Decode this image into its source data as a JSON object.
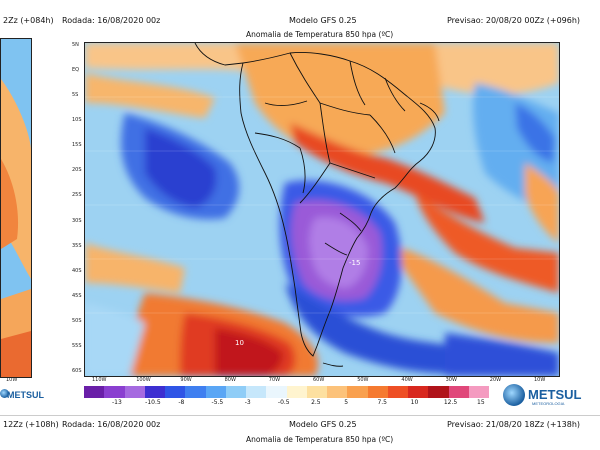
{
  "header": {
    "left_panel_time": "2Zz (+084h)",
    "rodada": "Rodada: 16/08/2020 00z",
    "modelo": "Modelo GFS 0.25",
    "previsao": "Previsao: 20/08/20 00Zz (+096h)",
    "title": "Anomalia de Temperatura 850 hpa (ºC)"
  },
  "map": {
    "lat_labels": [
      "5N",
      "EQ",
      "5S",
      "10S",
      "15S",
      "20S",
      "25S",
      "30S",
      "35S",
      "40S",
      "45S",
      "50S",
      "55S",
      "60S"
    ],
    "lon_labels": [
      "110W",
      "100W",
      "90W",
      "80W",
      "70W",
      "60W",
      "50W",
      "40W",
      "30W",
      "20W",
      "10W"
    ],
    "left_panel_lon_label": "10W",
    "anomaly_labels": [
      "-15",
      "10"
    ]
  },
  "legend": {
    "colors": [
      "#6a1fa8",
      "#8a3fd0",
      "#a56ae0",
      "#3d2fd1",
      "#2f55e6",
      "#3f7ff0",
      "#5aa6f5",
      "#8fcdf7",
      "#c6e7fb",
      "#eaf6fd",
      "#fff4cf",
      "#fde0a0",
      "#fcc27a",
      "#f9a04e",
      "#f57a30",
      "#ee4f25",
      "#d8281f",
      "#b0131a",
      "#e0477a",
      "#f49bc0"
    ],
    "labels": [
      "-13",
      "-10.5",
      "-8",
      "-5.5",
      "-3",
      "-0.5",
      "2.5",
      "5",
      "7.5",
      "10",
      "12.5",
      "15"
    ]
  },
  "logos": {
    "left": "METSUL",
    "right": "METSUL",
    "subtitle": "METEOROLOGIA"
  },
  "footer": {
    "left_panel_time": "12Zz (+108h)",
    "rodada": "Rodada: 16/08/2020 00z",
    "modelo": "Modelo GFS 0.25",
    "previsao": "Previsao: 21/08/20 18Zz (+138h)",
    "title": "Anomalia de Temperatura 850 hpa (ºC)"
  }
}
